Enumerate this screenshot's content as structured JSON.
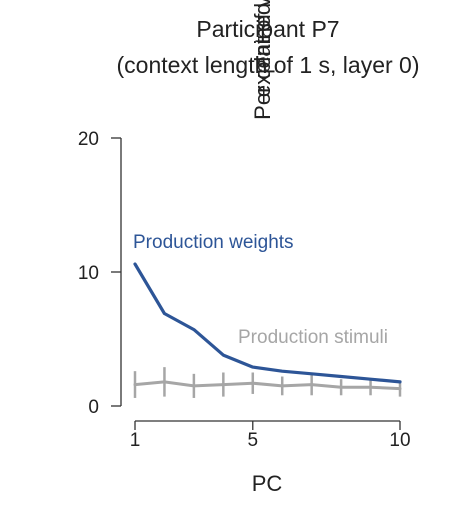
{
  "chart_data": {
    "type": "line",
    "title_lines": [
      "Participant P7",
      "(context length of 1 s, layer 0)"
    ],
    "xlabel": "PC",
    "ylabel_lines": [
      "Per cent of variance",
      "explained"
    ],
    "xlim": [
      1,
      10
    ],
    "ylim": [
      0,
      20
    ],
    "xticks": [
      1,
      5,
      10
    ],
    "yticks": [
      0,
      10,
      20
    ],
    "x": [
      1,
      2,
      3,
      4,
      5,
      6,
      7,
      8,
      9,
      10
    ],
    "series": [
      {
        "name": "Production weights",
        "color": "#2d5597",
        "values": [
          10.6,
          6.9,
          5.7,
          3.8,
          2.9,
          2.6,
          2.4,
          2.2,
          2.0,
          1.8
        ],
        "error": null
      },
      {
        "name": "Production stimuli",
        "color": "#a6a6a6",
        "values": [
          1.6,
          1.8,
          1.5,
          1.6,
          1.7,
          1.5,
          1.6,
          1.4,
          1.4,
          1.3
        ],
        "error": [
          1.0,
          1.1,
          0.9,
          0.9,
          0.8,
          0.7,
          0.8,
          0.6,
          0.6,
          0.6
        ]
      }
    ],
    "grid": false,
    "legend": "inline labels"
  }
}
